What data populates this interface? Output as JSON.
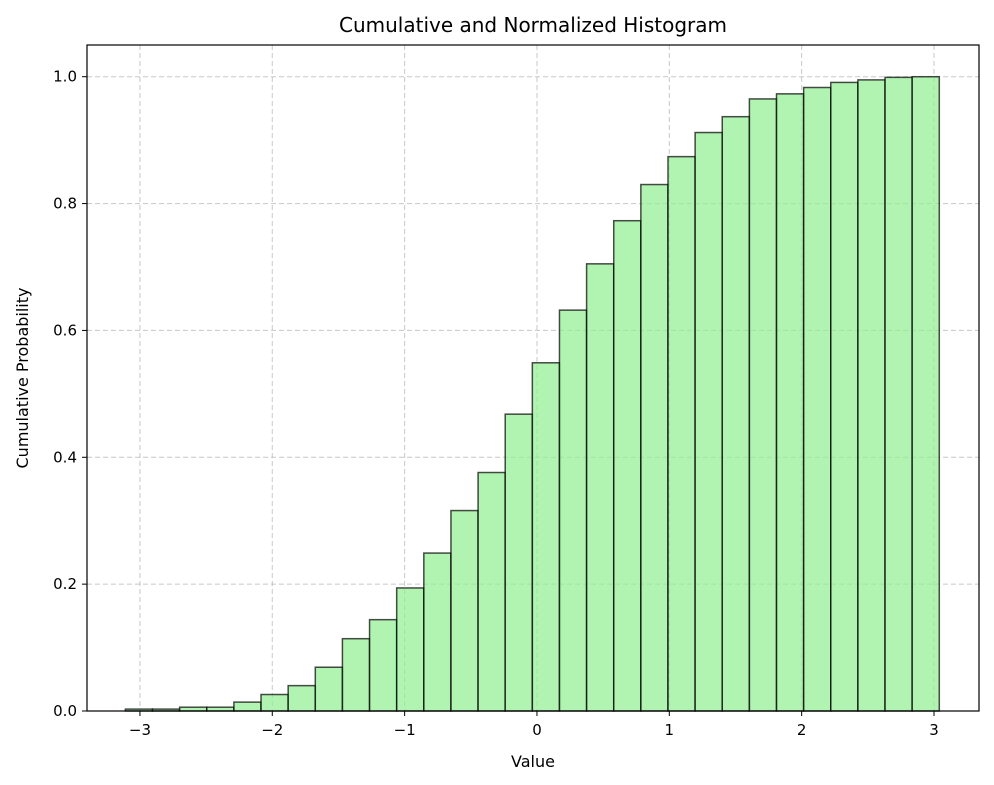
{
  "chart_data": {
    "type": "bar",
    "histogram": "cumulative",
    "title": "Cumulative and Normalized Histogram",
    "xlabel": "Value",
    "ylabel": "Cumulative Probability",
    "xlim": [
      -3.4,
      3.34
    ],
    "ylim": [
      0,
      1.05
    ],
    "xticks": [
      -3,
      -2,
      -1,
      0,
      1,
      2,
      3
    ],
    "xtick_labels": [
      "−3",
      "−2",
      "−1",
      "0",
      "1",
      "2",
      "3"
    ],
    "yticks": [
      0.0,
      0.2,
      0.4,
      0.6,
      0.8,
      1.0
    ],
    "ytick_labels": [
      "0.0",
      "0.2",
      "0.4",
      "0.6",
      "0.8",
      "1.0"
    ],
    "grid": true,
    "bin_edges": [
      -3.11,
      -2.905,
      -2.7,
      -2.495,
      -2.29,
      -2.085,
      -1.88,
      -1.675,
      -1.47,
      -1.265,
      -1.06,
      -0.855,
      -0.65,
      -0.445,
      -0.24,
      -0.035,
      0.17,
      0.375,
      0.58,
      0.785,
      0.99,
      1.195,
      1.4,
      1.605,
      1.81,
      2.015,
      2.22,
      2.425,
      2.63,
      2.835,
      3.04
    ],
    "values": [
      0.003,
      0.003,
      0.006,
      0.006,
      0.014,
      0.026,
      0.04,
      0.069,
      0.114,
      0.144,
      0.194,
      0.249,
      0.316,
      0.376,
      0.468,
      0.549,
      0.632,
      0.705,
      0.773,
      0.83,
      0.874,
      0.912,
      0.937,
      0.965,
      0.973,
      0.983,
      0.991,
      0.995,
      0.999,
      1.0
    ],
    "colors": {
      "bar_fill": "#90ee90",
      "bar_edge": "#000000",
      "grid": "#b0b0b0"
    }
  }
}
